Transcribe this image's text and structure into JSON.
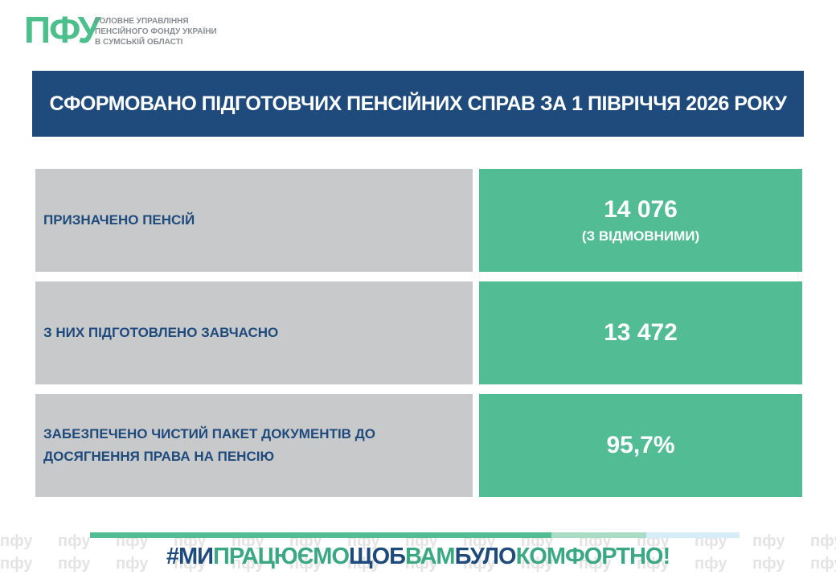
{
  "header": {
    "logo": "ПФУ",
    "org_lines": [
      "ГОЛОВНЕ УПРАВЛІННЯ",
      "ПЕНСІЙНОГО ФОНДУ УКРАЇНИ",
      "В СУМСЬКІЙ ОБЛАСТІ"
    ]
  },
  "title": "СФОРМОВАНО ПІДГОТОВЧИХ ПЕНСІЙНИХ СПРАВ ЗА 1 ПІВРІЧЧЯ 2026 РОКУ",
  "table": {
    "rows": [
      {
        "label": "ПРИЗНАЧЕНО ПЕНСІЙ",
        "value": "14 076",
        "note": "(З ВІДМОВНИМИ)"
      },
      {
        "label": "З НИХ ПІДГОТОВЛЕНО ЗАВЧАСНО",
        "value": "13 472"
      },
      {
        "label": "ЗАБЕЗПЕЧЕНО ЧИСТИЙ ПАКЕТ ДОКУМЕНТІВ ДО ДОСЯГНЕННЯ ПРАВА НА ПЕНСІЮ",
        "value": "95,7%"
      }
    ]
  },
  "footer": {
    "watermark": "пфу",
    "hashtag": [
      {
        "text": "#МИ",
        "color": "#1f4a7c"
      },
      {
        "text": "ПРАЦЮЄМО",
        "color": "#3aa882"
      },
      {
        "text": "ЩОБ",
        "color": "#1f4a7c"
      },
      {
        "text": "ВАМ",
        "color": "#3aa882"
      },
      {
        "text": "БУЛО",
        "color": "#1f4a7c"
      },
      {
        "text": "КОМФОРТНО!",
        "color": "#3aa882"
      }
    ]
  }
}
